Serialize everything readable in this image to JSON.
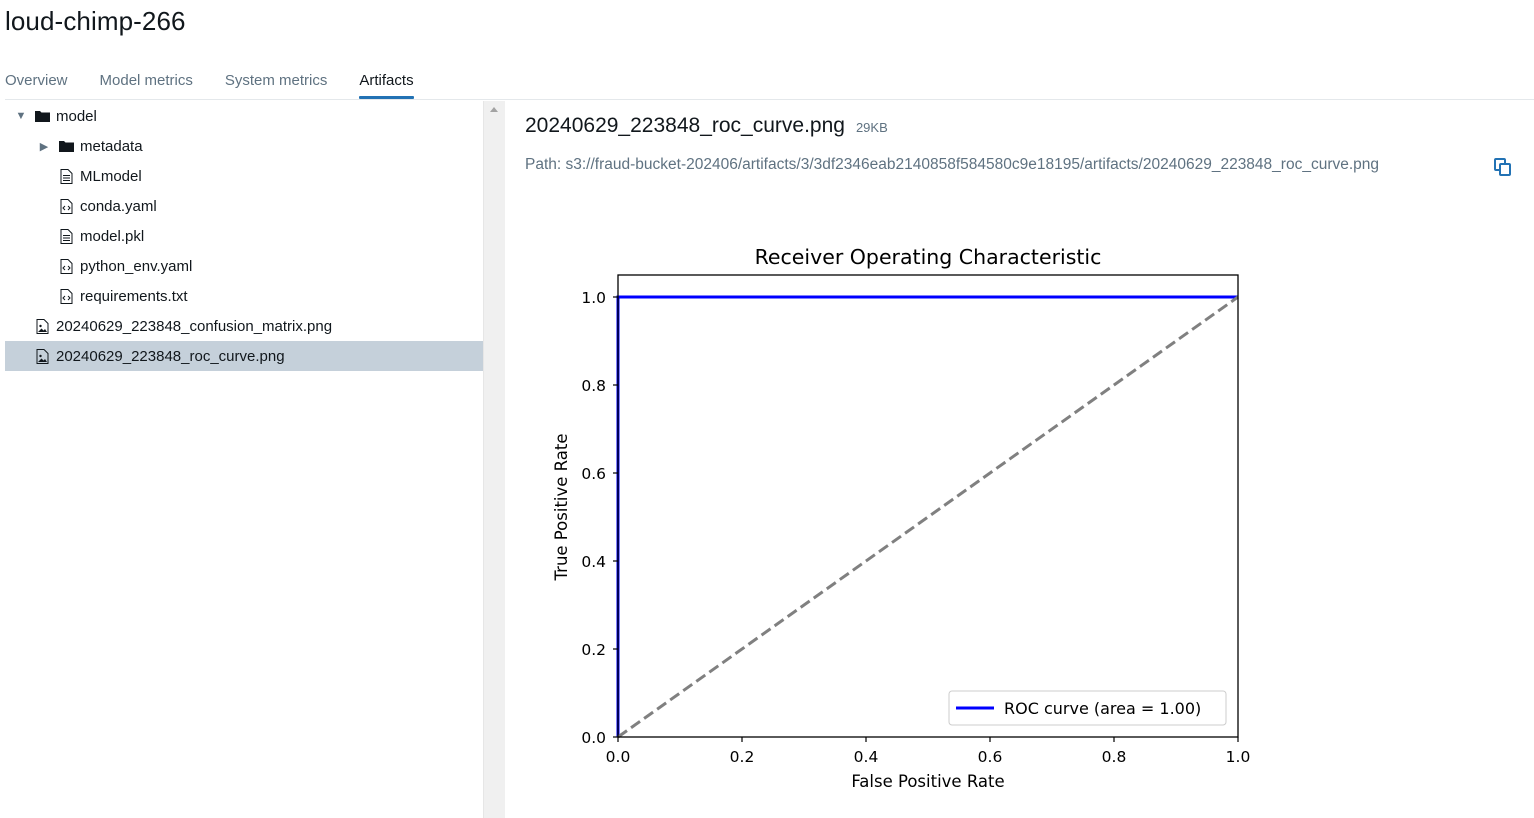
{
  "run_name": "loud-chimp-266",
  "tabs": [
    {
      "label": "Overview",
      "active": false
    },
    {
      "label": "Model metrics",
      "active": false
    },
    {
      "label": "System metrics",
      "active": false
    },
    {
      "label": "Artifacts",
      "active": true
    }
  ],
  "tree": [
    {
      "label": "model",
      "type": "folder",
      "expanded": true,
      "depth": 0
    },
    {
      "label": "metadata",
      "type": "folder",
      "expanded": false,
      "depth": 1
    },
    {
      "label": "MLmodel",
      "type": "file",
      "depth": 1
    },
    {
      "label": "conda.yaml",
      "type": "code-file",
      "depth": 1
    },
    {
      "label": "model.pkl",
      "type": "file",
      "depth": 1
    },
    {
      "label": "python_env.yaml",
      "type": "code-file",
      "depth": 1
    },
    {
      "label": "requirements.txt",
      "type": "code-file",
      "depth": 1
    },
    {
      "label": "20240629_223848_confusion_matrix.png",
      "type": "image-file",
      "depth": 0
    },
    {
      "label": "20240629_223848_roc_curve.png",
      "type": "image-file",
      "depth": 0,
      "selected": true
    }
  ],
  "preview": {
    "file_name": "20240629_223848_roc_curve.png",
    "file_size": "29KB",
    "path": "Path: s3://fraud-bucket-202406/artifacts/3/3df2346eab2140858f584580c9e18195/artifacts/20240629_223848_roc_curve.png"
  },
  "colors": {
    "accent": "#2272b4",
    "selected_row": "#c5d0da",
    "roc_line": "#0000ff",
    "diagonal": "#808080"
  },
  "chart_data": {
    "type": "line",
    "title": "Receiver Operating Characteristic",
    "xlabel": "False Positive Rate",
    "ylabel": "True Positive Rate",
    "xlim": [
      0.0,
      1.0
    ],
    "ylim": [
      0.0,
      1.0
    ],
    "xticks": [
      "0.0",
      "0.2",
      "0.4",
      "0.6",
      "0.8",
      "1.0"
    ],
    "yticks": [
      "0.0",
      "0.2",
      "0.4",
      "0.6",
      "0.8",
      "1.0"
    ],
    "grid": false,
    "legend_position": "lower right",
    "series": [
      {
        "name": "ROC curve (area = 1.00)",
        "x": [
          0.0,
          0.0,
          1.0
        ],
        "y": [
          0.0,
          1.0,
          1.0
        ],
        "style": "solid",
        "color": "#0000ff"
      },
      {
        "x": [
          0.0,
          1.0
        ],
        "y": [
          0.0,
          1.0
        ],
        "style": "dashed",
        "color": "#808080"
      }
    ]
  }
}
